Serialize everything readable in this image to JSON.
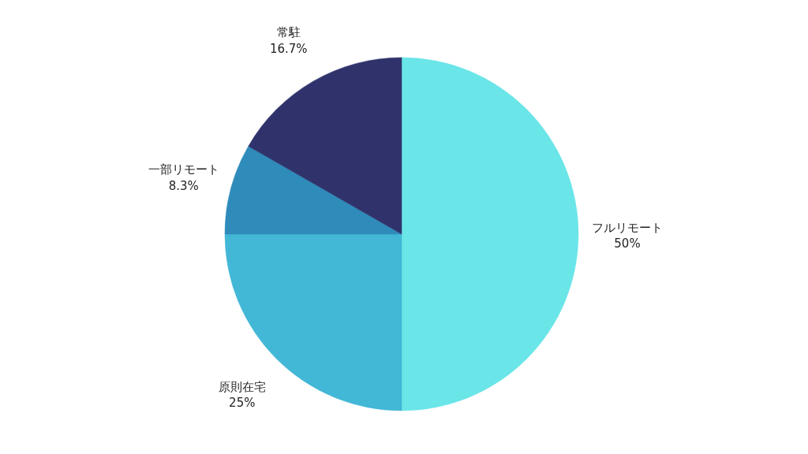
{
  "chart_data": {
    "type": "pie",
    "categories": [
      "フルリモート",
      "原則在宅",
      "一部リモート",
      "常駐"
    ],
    "values": [
      50,
      25,
      8.3,
      16.7
    ],
    "colors": [
      "#6ae5e8",
      "#43b7d6",
      "#2e8bba",
      "#30336b"
    ],
    "value_labels": [
      "50%",
      "25%",
      "8.3%",
      "16.7%"
    ]
  }
}
